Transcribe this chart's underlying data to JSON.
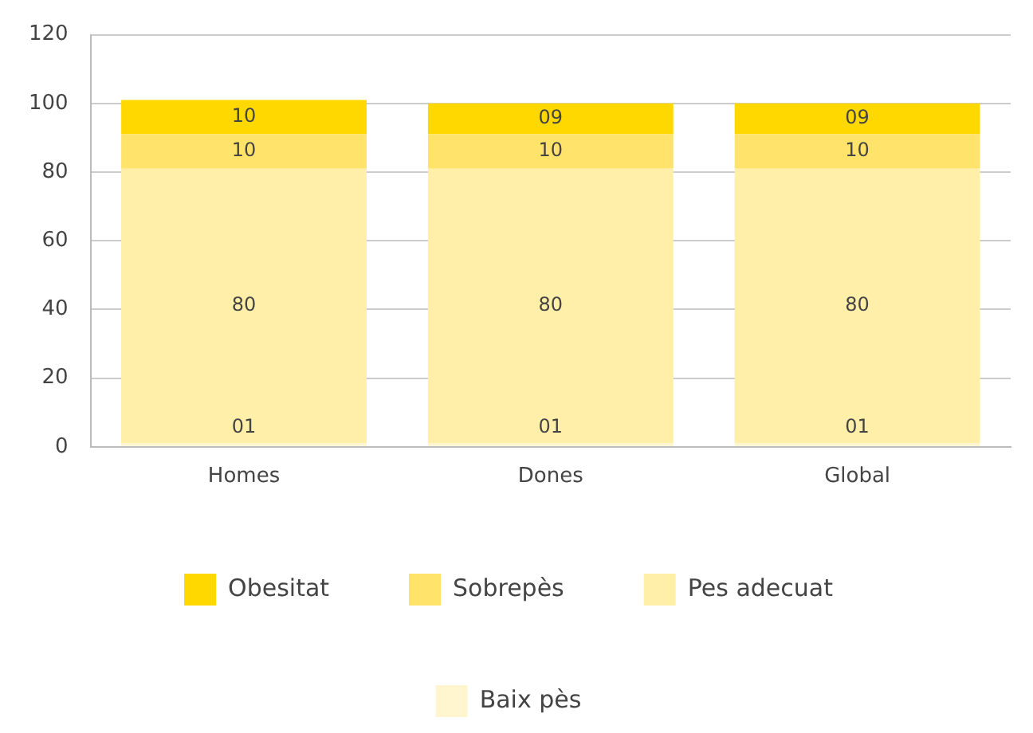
{
  "chart_data": {
    "type": "bar",
    "stacked": true,
    "categories": [
      "Homes",
      "Dones",
      "Global"
    ],
    "series": [
      {
        "name": "Baix pès",
        "color": "#fff6cf",
        "values": [
          1,
          1,
          1
        ],
        "value_labels": [
          "01",
          "01",
          "01"
        ]
      },
      {
        "name": "Pes adecuat",
        "color": "#ffefa9",
        "values": [
          80,
          80,
          80
        ],
        "value_labels": [
          "80",
          "80",
          "80"
        ]
      },
      {
        "name": "Sobrepès",
        "color": "#ffe36b",
        "values": [
          10,
          10,
          10
        ],
        "value_labels": [
          "10",
          "10",
          "10"
        ]
      },
      {
        "name": "Obesitat",
        "color": "#ffd800",
        "values": [
          10,
          9,
          9
        ],
        "value_labels": [
          "10",
          "09",
          "09"
        ]
      }
    ],
    "ylim": [
      0,
      120
    ],
    "yticks": [
      0,
      20,
      40,
      60,
      80,
      100,
      120
    ],
    "grid": "y",
    "legend": "bottom"
  }
}
